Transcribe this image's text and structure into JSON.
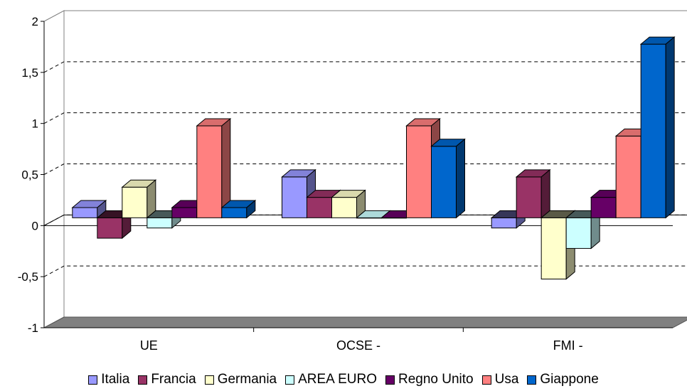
{
  "chart_data": {
    "type": "bar",
    "title": "",
    "xlabel": "",
    "ylabel": "",
    "categories": [
      "UE",
      "OCSE -",
      "FMI -"
    ],
    "ylim": [
      -1,
      2
    ],
    "yticks": [
      "2",
      "1,5",
      "1",
      "0,5",
      "0",
      "-0,5",
      "-1"
    ],
    "ytick_values": [
      2,
      1.5,
      1,
      0.5,
      0,
      -0.5,
      -1
    ],
    "grid": true,
    "legend_position": "bottom",
    "three_d": true,
    "series": [
      {
        "name": "Italia",
        "color": "#9999FF",
        "values": [
          0.1,
          0.4,
          -0.1
        ]
      },
      {
        "name": "Francia",
        "color": "#993366",
        "values": [
          -0.2,
          0.2,
          0.4
        ]
      },
      {
        "name": "Germania",
        "color": "#FFFFCC",
        "values": [
          0.3,
          0.2,
          -0.6
        ]
      },
      {
        "name": "AREA EURO",
        "color": "#CCFFFF",
        "values": [
          -0.1,
          0.0,
          -0.3
        ]
      },
      {
        "name": "Regno Unito",
        "color": "#660066",
        "values": [
          0.1,
          0.0,
          0.2
        ]
      },
      {
        "name": "Usa",
        "color": "#FF8080",
        "values": [
          0.9,
          0.9,
          0.8
        ]
      },
      {
        "name": "Giappone",
        "color": "#0066CC",
        "values": [
          0.1,
          0.7,
          1.7
        ]
      }
    ]
  }
}
